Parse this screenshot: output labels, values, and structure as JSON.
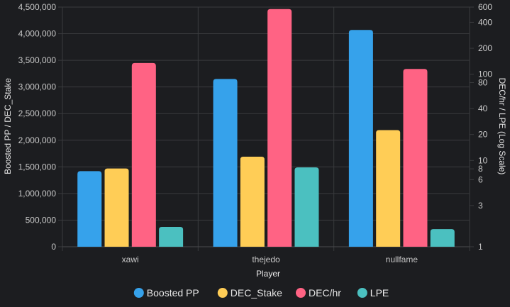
{
  "chart_data": {
    "type": "bar",
    "categories": [
      "xawi",
      "thejedo",
      "nullfame"
    ],
    "xlabel": "Player",
    "ylabel_left": "Boosted PP / DEC_Stake",
    "ylabel_right": "DEC/hr / LPE (Log Scale)",
    "left_axis": {
      "scale": "linear",
      "ylim": [
        0,
        4500000
      ],
      "ticks": [
        0,
        500000,
        1000000,
        1500000,
        2000000,
        2500000,
        3000000,
        3500000,
        4000000,
        4500000
      ],
      "tick_labels": [
        "0",
        "500,000",
        "1,000,000",
        "1,500,000",
        "2,000,000",
        "2,500,000",
        "3,000,000",
        "3,500,000",
        "4,000,000",
        "4,500,000"
      ]
    },
    "right_axis": {
      "scale": "log",
      "ylim": [
        1,
        600
      ],
      "ticks": [
        1,
        3,
        6,
        8,
        10,
        20,
        40,
        80,
        100,
        200,
        400,
        600
      ],
      "tick_labels": [
        "1",
        "3",
        "6",
        "8",
        "10",
        "20",
        "40",
        "80",
        "100",
        "200",
        "400",
        "600"
      ]
    },
    "series": [
      {
        "name": "Boosted PP",
        "axis": "left",
        "color": "#36a2eb",
        "values": [
          1420000,
          3150000,
          4070000
        ]
      },
      {
        "name": "DEC_Stake",
        "axis": "left",
        "color": "#ffcd56",
        "values": [
          1470000,
          1690000,
          2190000
        ]
      },
      {
        "name": "DEC/hr",
        "axis": "right",
        "color": "#ff6384",
        "values": [
          135,
          570,
          115
        ]
      },
      {
        "name": "LPE",
        "axis": "right",
        "color": "#4bc0c0",
        "values": [
          1.7,
          8.3,
          1.6
        ]
      }
    ],
    "grid": true,
    "legend_position": "bottom"
  }
}
